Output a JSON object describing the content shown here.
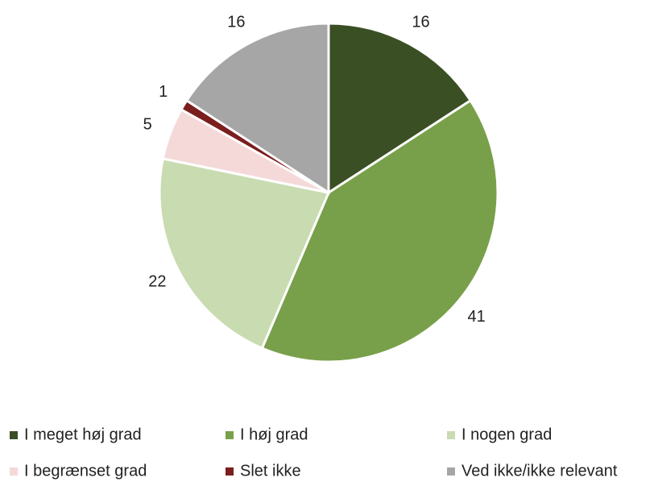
{
  "chart_data": {
    "type": "pie",
    "categories": [
      "I meget høj grad",
      "I høj grad",
      "I nogen grad",
      "I begrænset grad",
      "Slet ikke",
      "Ved ikke/ikke relevant"
    ],
    "values": [
      16,
      41,
      22,
      5,
      1,
      16
    ],
    "colors": [
      "#3b4f24",
      "#78a04a",
      "#c9dbb0",
      "#f5d9d9",
      "#7b1e1e",
      "#a6a6a6"
    ],
    "legend": "bottom"
  }
}
